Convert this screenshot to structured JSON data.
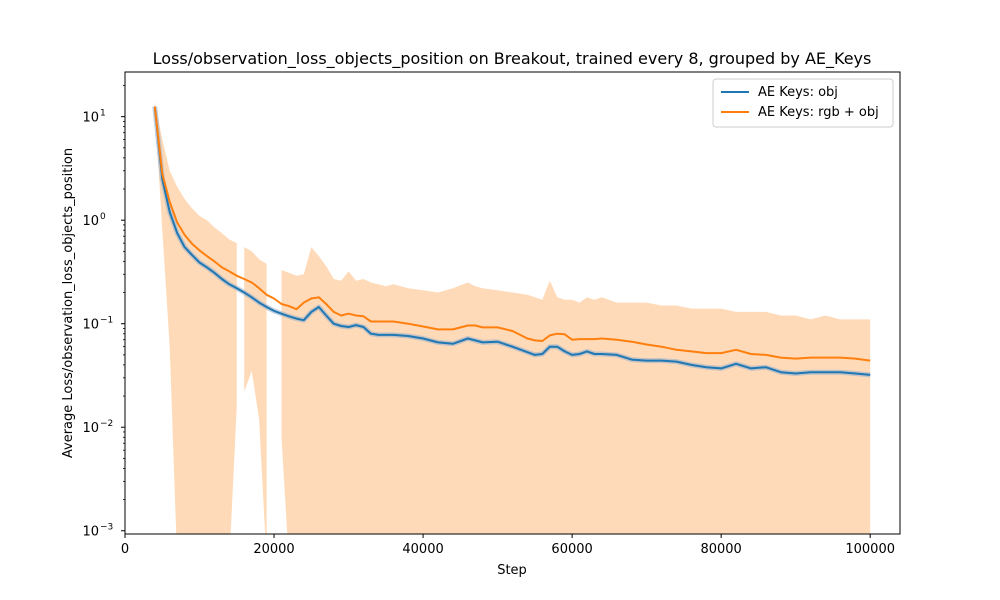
{
  "chart_data": {
    "type": "line",
    "title": "Loss/observation_loss_objects_position on Breakout, trained every 8, grouped by AE_Keys",
    "xlabel": "Step",
    "ylabel": "Average Loss/observation_loss_objects_position",
    "xlim": [
      0,
      104000
    ],
    "ylim": [
      0.00093,
      27
    ],
    "yscale": "log",
    "x_ticks": [
      0,
      20000,
      40000,
      60000,
      80000,
      100000
    ],
    "x_tick_labels": [
      "0",
      "20000",
      "40000",
      "60000",
      "80000",
      "100000"
    ],
    "y_ticks": [
      0.001,
      0.01,
      0.1,
      1,
      10
    ],
    "y_tick_labels": [
      {
        "base": "10",
        "exp": "−3"
      },
      {
        "base": "10",
        "exp": "−2"
      },
      {
        "base": "10",
        "exp": "−1"
      },
      {
        "base": "10",
        "exp": "0"
      },
      {
        "base": "10",
        "exp": "1"
      }
    ],
    "legend_position": "top-right",
    "grid": false,
    "x": [
      4000,
      5000,
      6000,
      7000,
      8000,
      9000,
      10000,
      11000,
      12000,
      13000,
      14000,
      15000,
      16000,
      17000,
      18000,
      19000,
      20000,
      21000,
      22000,
      23000,
      24000,
      25000,
      26000,
      27000,
      28000,
      29000,
      30000,
      31000,
      32000,
      33000,
      34000,
      35000,
      36000,
      38000,
      40000,
      42000,
      44000,
      46000,
      47000,
      48000,
      50000,
      52000,
      54000,
      55000,
      56000,
      57000,
      58000,
      59000,
      60000,
      61000,
      62000,
      63000,
      64000,
      66000,
      68000,
      70000,
      72000,
      74000,
      76000,
      78000,
      80000,
      82000,
      84000,
      86000,
      88000,
      90000,
      92000,
      94000,
      96000,
      98000,
      100000
    ],
    "series": [
      {
        "name": "AE Keys: obj",
        "color": "#1f77b4",
        "values": [
          12.5,
          2.5,
          1.2,
          0.75,
          0.55,
          0.46,
          0.39,
          0.35,
          0.31,
          0.27,
          0.24,
          0.22,
          0.2,
          0.18,
          0.16,
          0.145,
          0.133,
          0.125,
          0.118,
          0.112,
          0.108,
          0.13,
          0.145,
          0.12,
          0.1,
          0.095,
          0.093,
          0.097,
          0.093,
          0.08,
          0.078,
          0.078,
          0.078,
          0.076,
          0.072,
          0.066,
          0.064,
          0.072,
          0.069,
          0.066,
          0.067,
          0.06,
          0.053,
          0.05,
          0.051,
          0.06,
          0.06,
          0.054,
          0.05,
          0.051,
          0.054,
          0.051,
          0.051,
          0.05,
          0.045,
          0.044,
          0.044,
          0.043,
          0.04,
          0.038,
          0.037,
          0.041,
          0.037,
          0.038,
          0.034,
          0.033,
          0.034,
          0.034,
          0.034,
          0.033,
          0.032
        ]
      },
      {
        "name": "AE Keys: rgb + obj",
        "color": "#ff7f0e",
        "values": [
          12.5,
          2.8,
          1.5,
          0.95,
          0.72,
          0.59,
          0.51,
          0.45,
          0.4,
          0.35,
          0.32,
          0.29,
          0.27,
          0.25,
          0.22,
          0.19,
          0.175,
          0.155,
          0.148,
          0.138,
          0.16,
          0.175,
          0.18,
          0.155,
          0.13,
          0.12,
          0.125,
          0.12,
          0.118,
          0.105,
          0.105,
          0.105,
          0.105,
          0.1,
          0.094,
          0.088,
          0.088,
          0.096,
          0.096,
          0.092,
          0.092,
          0.085,
          0.072,
          0.069,
          0.068,
          0.077,
          0.08,
          0.079,
          0.07,
          0.071,
          0.071,
          0.071,
          0.072,
          0.07,
          0.067,
          0.063,
          0.06,
          0.056,
          0.054,
          0.052,
          0.052,
          0.056,
          0.051,
          0.05,
          0.047,
          0.046,
          0.047,
          0.047,
          0.047,
          0.046,
          0.044
        ]
      }
    ],
    "band": {
      "series": "AE Keys: rgb + obj",
      "color": "#ffdab9",
      "upper": [
        14,
        6,
        3.0,
        2.1,
        1.6,
        1.3,
        1.1,
        1.0,
        0.85,
        0.75,
        0.65,
        0.6,
        0.55,
        0.5,
        0.42,
        0.38,
        0.35,
        0.33,
        0.31,
        0.29,
        0.3,
        0.55,
        0.45,
        0.36,
        0.27,
        0.26,
        0.32,
        0.26,
        0.27,
        0.25,
        0.24,
        0.23,
        0.24,
        0.22,
        0.21,
        0.2,
        0.22,
        0.25,
        0.23,
        0.22,
        0.21,
        0.2,
        0.19,
        0.18,
        0.17,
        0.26,
        0.18,
        0.17,
        0.17,
        0.16,
        0.18,
        0.17,
        0.18,
        0.16,
        0.16,
        0.16,
        0.15,
        0.15,
        0.14,
        0.14,
        0.14,
        0.13,
        0.13,
        0.13,
        0.12,
        0.12,
        0.11,
        0.12,
        0.11,
        0.11,
        0.11
      ],
      "lower": [
        12,
        0.8,
        0.06,
        0.0005,
        0.0005,
        0.0005,
        0.0005,
        0.0005,
        0.0005,
        0.0005,
        0.0005,
        0.016,
        0.022,
        0.035,
        0.012,
        0.0005,
        0.0005,
        0.008,
        0.0005,
        0.0005,
        0.0005,
        0.0005,
        0.0005,
        0.0005,
        0.0005,
        0.0005,
        0.0005,
        0.0005,
        0.0005,
        0.0005,
        0.0005,
        0.0005,
        0.0005,
        0.0005,
        0.0005,
        0.0005,
        0.0005,
        0.0005,
        0.0005,
        0.0005,
        0.0005,
        0.0005,
        0.0005,
        0.0005,
        0.0005,
        0.0005,
        0.0005,
        0.0005,
        0.0005,
        0.0005,
        0.0005,
        0.0005,
        0.0005,
        0.0005,
        0.0005,
        0.0005,
        0.0005,
        0.0005,
        0.0005,
        0.0005,
        0.0005,
        0.0005,
        0.0005,
        0.0005,
        0.0005,
        0.0005,
        0.0005,
        0.0005,
        0.0005,
        0.0005,
        0.0005
      ]
    },
    "gaps": [
      [
        15000,
        16000
      ],
      [
        19000,
        21000
      ]
    ]
  }
}
